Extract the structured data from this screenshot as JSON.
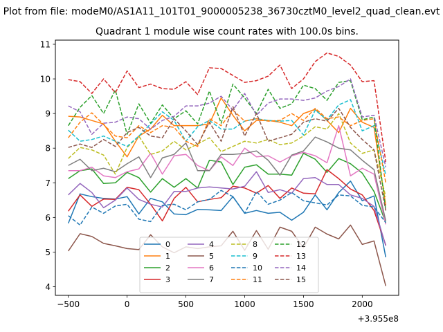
{
  "chart_data": {
    "type": "line",
    "suptitle": "Plot from file: modeM0/AS1A11_101T01_9000005238_36730cztM0_level2_quad_clean.evt",
    "title": "Quadrant 1 module wise count rates with 100.0s bins.",
    "xlabel": "",
    "ylabel": "",
    "x_offset_label": "+3.955e8",
    "xlim": [
      -610,
      2310
    ],
    "ylim": [
      3.75,
      11.12
    ],
    "xticks": [
      -500,
      0,
      500,
      1000,
      1500,
      2000
    ],
    "xtick_labels": [
      "−500",
      "0",
      "500",
      "1000",
      "1500",
      "2000"
    ],
    "yticks": [
      4,
      5,
      6,
      7,
      8,
      9,
      10,
      11
    ],
    "ytick_labels": [
      "4",
      "5",
      "6",
      "7",
      "8",
      "9",
      "10",
      "11"
    ],
    "legend_position": "lower center",
    "x": [
      -500,
      -400,
      -300,
      -200,
      -100,
      0,
      100,
      200,
      300,
      400,
      500,
      600,
      700,
      800,
      900,
      1000,
      1100,
      1200,
      1300,
      1400,
      1500,
      1600,
      1700,
      1800,
      1900,
      2000,
      2100,
      2200
    ],
    "series": [
      {
        "name": "0",
        "color": "#1f77b4",
        "dash": "solid",
        "values": [
          5.83,
          6.68,
          6.6,
          6.55,
          6.53,
          6.6,
          6.1,
          6.55,
          6.45,
          6.1,
          6.08,
          6.23,
          6.22,
          6.2,
          6.6,
          6.12,
          6.2,
          6.12,
          6.15,
          5.92,
          6.15,
          6.65,
          6.22,
          6.72,
          7.05,
          6.48,
          6.62,
          4.85
        ]
      },
      {
        "name": "1",
        "color": "#ff7f0e",
        "dash": "solid",
        "values": [
          8.92,
          8.9,
          8.8,
          8.7,
          8.2,
          7.75,
          8.35,
          8.55,
          8.95,
          8.65,
          8.65,
          8.65,
          8.7,
          9.45,
          8.95,
          8.5,
          8.8,
          8.8,
          8.75,
          8.65,
          9.0,
          9.12,
          8.8,
          8.45,
          9.15,
          8.75,
          8.6,
          6.35
        ]
      },
      {
        "name": "2",
        "color": "#2ca02c",
        "dash": "solid",
        "values": [
          7.12,
          7.35,
          7.4,
          6.98,
          7.0,
          7.3,
          7.15,
          6.73,
          7.12,
          6.87,
          7.12,
          6.85,
          7.65,
          7.6,
          6.95,
          7.45,
          7.52,
          7.25,
          7.25,
          7.22,
          7.85,
          7.68,
          7.3,
          7.7,
          7.55,
          7.28,
          6.75,
          5.85
        ]
      },
      {
        "name": "3",
        "color": "#d62728",
        "dash": "solid",
        "values": [
          6.18,
          6.65,
          6.32,
          6.53,
          6.52,
          6.87,
          6.8,
          6.38,
          5.9,
          6.55,
          6.87,
          6.45,
          6.52,
          6.57,
          6.9,
          6.85,
          6.7,
          6.92,
          6.55,
          6.85,
          6.7,
          6.68,
          7.38,
          7.12,
          6.82,
          6.65,
          6.2,
          5.2
        ]
      },
      {
        "name": "4",
        "color": "#9467bd",
        "dash": "solid",
        "values": [
          6.65,
          6.98,
          6.72,
          6.28,
          6.5,
          6.85,
          6.52,
          6.38,
          6.3,
          6.75,
          6.75,
          6.85,
          6.88,
          6.85,
          6.82,
          6.9,
          7.32,
          6.72,
          6.8,
          6.7,
          7.12,
          7.15,
          6.95,
          6.95,
          6.65,
          6.55,
          6.32,
          5.18
        ]
      },
      {
        "name": "5",
        "color": "#8c564b",
        "dash": "solid",
        "values": [
          5.03,
          5.53,
          5.45,
          5.25,
          5.18,
          5.1,
          5.07,
          5.5,
          5.15,
          4.98,
          5.15,
          5.1,
          5.15,
          5.18,
          5.6,
          5.05,
          5.62,
          5.08,
          5.72,
          5.6,
          5.12,
          5.72,
          5.52,
          5.38,
          5.78,
          5.22,
          5.32,
          4.02
        ]
      },
      {
        "name": "6",
        "color": "#e377c2",
        "dash": "solid",
        "values": [
          7.35,
          7.35,
          7.45,
          7.2,
          7.15,
          7.32,
          7.4,
          7.85,
          7.25,
          7.78,
          7.82,
          7.5,
          7.35,
          7.75,
          7.5,
          8.0,
          7.75,
          7.78,
          7.6,
          7.78,
          7.88,
          7.78,
          7.58,
          8.65,
          7.2,
          7.42,
          7.25,
          5.8
        ]
      },
      {
        "name": "7",
        "color": "#7f7f7f",
        "dash": "solid",
        "values": [
          7.5,
          7.68,
          7.35,
          7.42,
          7.32,
          7.55,
          7.75,
          7.15,
          7.72,
          7.82,
          8.15,
          7.35,
          7.35,
          7.82,
          7.82,
          7.85,
          7.92,
          7.65,
          7.22,
          7.8,
          7.92,
          8.32,
          8.18,
          8.0,
          7.95,
          7.65,
          7.38,
          5.9
        ]
      },
      {
        "name": "8",
        "color": "#bcbd22",
        "dash": "dashed",
        "values": [
          7.7,
          8.02,
          7.95,
          7.8,
          7.25,
          8.02,
          8.35,
          7.82,
          7.92,
          8.2,
          7.95,
          8.12,
          8.3,
          7.9,
          8.05,
          8.2,
          8.15,
          8.25,
          8.1,
          8.15,
          8.35,
          8.62,
          8.55,
          9.0,
          8.15,
          7.85,
          7.95,
          6.6
        ]
      },
      {
        "name": "9",
        "color": "#17becf",
        "dash": "dashed",
        "values": [
          8.52,
          8.2,
          8.25,
          8.35,
          8.2,
          8.05,
          8.35,
          8.7,
          9.05,
          8.8,
          8.2,
          8.62,
          8.8,
          8.55,
          8.55,
          8.78,
          8.85,
          8.8,
          8.78,
          8.8,
          8.38,
          9.1,
          8.82,
          9.25,
          9.4,
          8.5,
          8.65,
          7.22
        ]
      },
      {
        "name": "10",
        "color": "#1f77b4",
        "dash": "dashed",
        "values": [
          6.05,
          5.78,
          6.3,
          6.12,
          6.33,
          6.38,
          5.95,
          5.88,
          6.35,
          6.38,
          6.22,
          6.45,
          6.52,
          6.78,
          6.6,
          6.12,
          6.75,
          6.38,
          6.5,
          6.72,
          6.48,
          6.42,
          6.36,
          6.65,
          6.62,
          6.35,
          6.3,
          5.85
        ]
      },
      {
        "name": "11",
        "color": "#ff7f0e",
        "dash": "dashed",
        "values": [
          8.3,
          8.75,
          9.02,
          8.68,
          8.35,
          8.3,
          8.65,
          8.45,
          8.65,
          8.6,
          8.2,
          8.05,
          8.85,
          8.65,
          9.1,
          8.78,
          8.85,
          8.78,
          8.8,
          9.0,
          8.8,
          9.15,
          8.85,
          8.9,
          8.65,
          8.8,
          8.85,
          7.0
        ]
      },
      {
        "name": "12",
        "color": "#2ca02c",
        "dash": "dashed",
        "values": [
          8.65,
          9.18,
          9.52,
          9.0,
          9.68,
          8.4,
          9.28,
          8.72,
          9.25,
          8.85,
          9.08,
          8.7,
          9.65,
          8.72,
          9.85,
          9.45,
          9.0,
          9.7,
          9.15,
          9.28,
          9.82,
          9.72,
          9.38,
          9.9,
          9.95,
          8.82,
          8.9,
          6.2
        ]
      },
      {
        "name": "13",
        "color": "#d62728",
        "dash": "dashed",
        "values": [
          9.98,
          9.92,
          9.58,
          10.0,
          9.6,
          10.23,
          9.75,
          9.85,
          9.72,
          9.7,
          9.92,
          9.55,
          10.32,
          10.3,
          10.1,
          9.9,
          9.95,
          10.08,
          10.4,
          9.72,
          10.0,
          10.5,
          10.75,
          10.65,
          10.4,
          9.92,
          9.95,
          7.6
        ]
      },
      {
        "name": "14",
        "color": "#9467bd",
        "dash": "dashed",
        "values": [
          9.22,
          9.05,
          8.4,
          8.72,
          8.75,
          8.9,
          8.85,
          8.55,
          8.8,
          8.92,
          9.22,
          9.22,
          9.3,
          9.5,
          9.1,
          9.58,
          8.95,
          9.3,
          9.42,
          9.42,
          9.38,
          9.45,
          9.65,
          9.78,
          10.0,
          8.9,
          8.95,
          7.45
        ]
      },
      {
        "name": "15",
        "color": "#8c564b",
        "dash": "dashed",
        "values": [
          8.02,
          8.12,
          8.02,
          8.25,
          8.05,
          8.45,
          8.6,
          8.35,
          8.3,
          8.85,
          8.5,
          8.1,
          8.75,
          8.2,
          9.2,
          8.35,
          9.0,
          8.2,
          8.3,
          8.4,
          8.75,
          8.85,
          8.78,
          9.15,
          8.6,
          8.25,
          7.95,
          6.2
        ]
      }
    ]
  }
}
